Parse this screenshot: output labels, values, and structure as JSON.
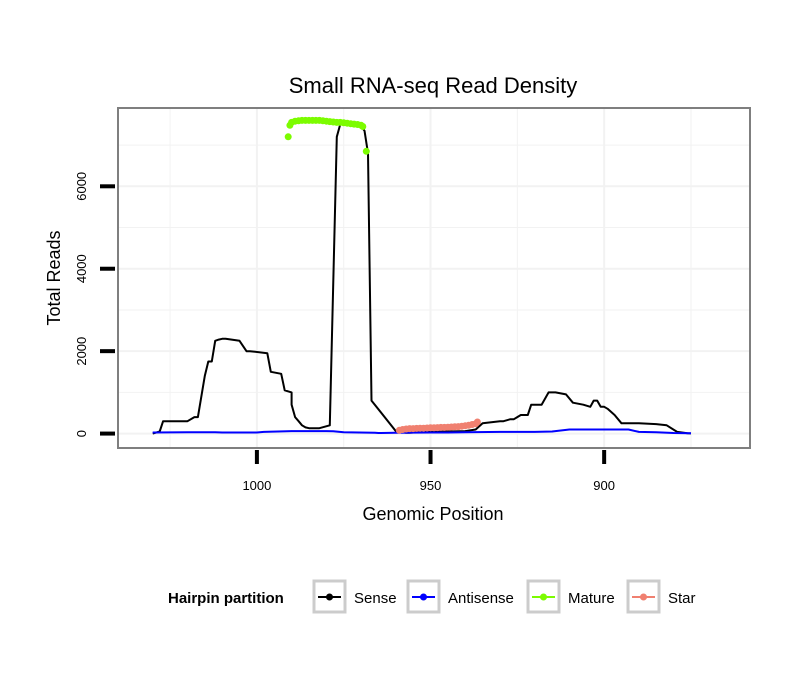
{
  "chart_data": {
    "type": "line",
    "title": "Small RNA-seq Read Density",
    "xlabel": "Genomic Position",
    "ylabel": "Total Reads",
    "xlim": [
      1040,
      858
    ],
    "ylim": [
      -350,
      7900
    ],
    "x_reversed": true,
    "grid": true,
    "xticks": [
      1000,
      950,
      900
    ],
    "xtick_labels": [
      "1000",
      "950",
      "900"
    ],
    "yticks": [
      0,
      2000,
      4000,
      6000
    ],
    "ytick_labels": [
      "0",
      "2000",
      "4000",
      "6000"
    ],
    "legend": {
      "title": "Hairpin partition",
      "placement": "bottom",
      "entries": [
        "Sense",
        "Antisense",
        "Mature",
        "Star"
      ]
    },
    "colors": {
      "Sense": "#000000",
      "Antisense": "#0000ff",
      "Mature": "#7cfc00",
      "Star": "#f08070",
      "grid": "#f2f2f2",
      "border": "#7f7f7f"
    },
    "series": [
      {
        "name": "Sense",
        "style": "line",
        "x": [
          1030,
          1028,
          1027,
          1020,
          1018,
          1017,
          1015,
          1014,
          1013,
          1012,
          1011,
          1010,
          1009,
          1008,
          1005,
          1003,
          1002,
          997,
          996,
          993,
          992,
          990,
          990,
          989,
          988,
          987,
          986,
          985,
          982,
          979,
          977,
          976,
          975.5,
          975,
          971,
          970,
          969,
          968,
          967,
          960,
          959,
          958,
          957,
          956,
          955,
          954,
          950,
          940,
          937,
          935,
          930,
          929,
          927,
          926,
          925,
          924,
          922,
          921,
          920,
          918,
          916,
          914,
          911,
          909,
          906,
          904,
          903,
          902,
          901,
          900,
          899,
          897,
          895,
          893,
          892,
          890,
          885,
          882,
          879,
          876,
          875
        ],
        "y": [
          0,
          50,
          300,
          300,
          400,
          400,
          1400,
          1750,
          1750,
          2250,
          2280,
          2300,
          2300,
          2290,
          2250,
          2000,
          2000,
          1950,
          1500,
          1450,
          1050,
          1000,
          700,
          400,
          300,
          200,
          150,
          130,
          130,
          200,
          7200,
          7500,
          7550,
          7500,
          7500,
          7450,
          7350,
          6800,
          800,
          60,
          40,
          30,
          20,
          20,
          25,
          30,
          40,
          60,
          100,
          250,
          300,
          300,
          350,
          350,
          400,
          450,
          450,
          700,
          700,
          700,
          1000,
          1000,
          950,
          750,
          700,
          650,
          800,
          800,
          650,
          650,
          600,
          450,
          250,
          250,
          250,
          250,
          230,
          200,
          40,
          10,
          5
        ]
      },
      {
        "name": "Antisense",
        "style": "line",
        "x": [
          1030,
          1020,
          1012,
          1010,
          1000,
          998,
          990,
          980,
          978,
          975,
          966,
          965,
          960,
          950,
          945,
          940,
          930,
          920,
          915,
          910,
          905,
          900,
          898,
          893,
          890,
          885,
          880,
          875
        ],
        "y": [
          25,
          30,
          30,
          25,
          25,
          40,
          60,
          60,
          55,
          30,
          20,
          15,
          20,
          25,
          25,
          30,
          40,
          40,
          50,
          100,
          100,
          100,
          100,
          100,
          40,
          30,
          15,
          10
        ]
      },
      {
        "name": "Mature",
        "style": "points",
        "x": [
          991,
          990.5,
          990,
          989,
          988,
          987,
          986,
          985,
          984,
          983,
          982,
          981,
          980,
          979,
          978,
          977,
          976,
          975,
          974,
          973,
          972,
          971,
          970,
          969.5,
          968.5
        ],
        "y": [
          7200,
          7480,
          7550,
          7580,
          7590,
          7600,
          7600,
          7600,
          7600,
          7600,
          7600,
          7590,
          7580,
          7570,
          7560,
          7550,
          7550,
          7540,
          7530,
          7520,
          7510,
          7500,
          7480,
          7450,
          6850
        ]
      },
      {
        "name": "Star",
        "style": "points",
        "x": [
          959,
          958,
          957,
          956,
          955,
          954,
          953,
          952,
          951,
          950,
          949,
          948,
          947,
          946,
          945,
          944,
          943,
          942,
          941,
          940,
          939,
          938,
          937,
          936.5
        ],
        "y": [
          80,
          100,
          110,
          120,
          120,
          125,
          130,
          130,
          135,
          140,
          140,
          145,
          150,
          150,
          155,
          160,
          165,
          170,
          180,
          190,
          200,
          220,
          240,
          280
        ]
      }
    ]
  }
}
